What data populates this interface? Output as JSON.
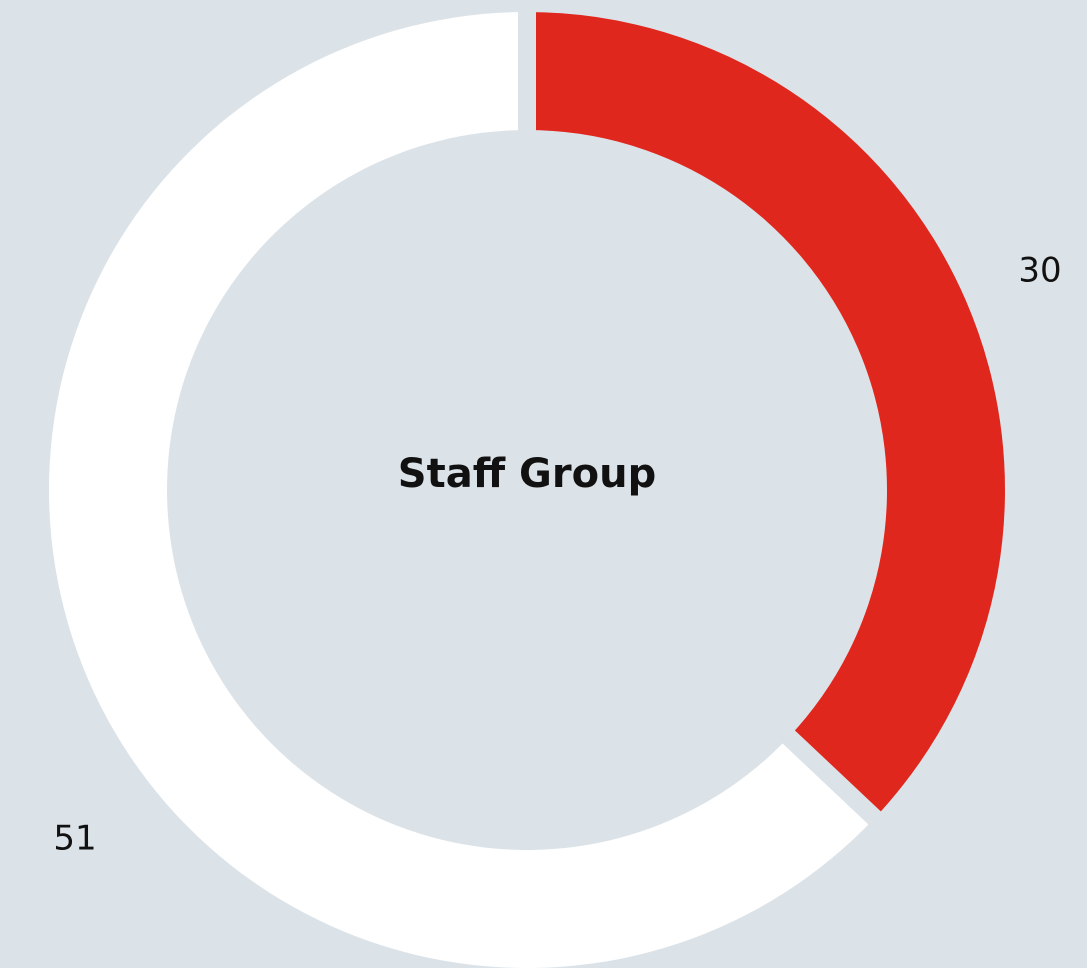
{
  "chart_data": {
    "type": "donut",
    "title": "Staff Group",
    "categories": [
      null,
      null
    ],
    "values": [
      30,
      51
    ],
    "colors": [
      "#e0271e",
      "#ffffff"
    ]
  }
}
